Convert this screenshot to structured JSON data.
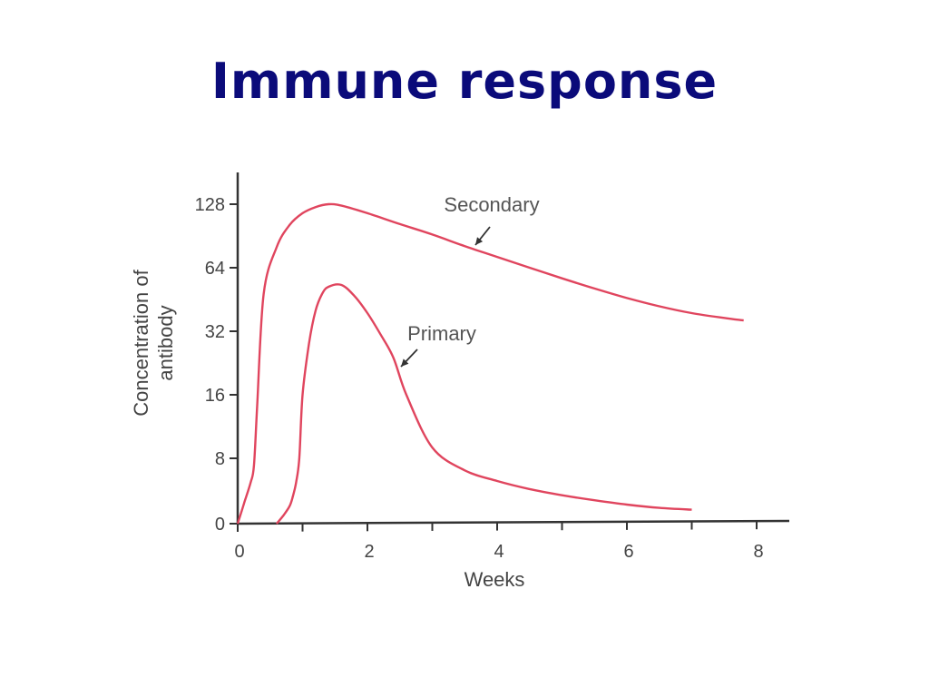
{
  "slide": {
    "title": "Immune response"
  },
  "colors": {
    "title": "#0b0b7a",
    "curve": "#e0455e",
    "axis": "#333333",
    "text": "#444444"
  },
  "chart_data": {
    "type": "line",
    "title": "Immune response",
    "xlabel": "Weeks",
    "ylabel_line1": "Concentration of",
    "ylabel_line2": "antibody",
    "x_ticks": [
      "0",
      "2",
      "4",
      "6",
      "8"
    ],
    "y_ticks": [
      "0",
      "8",
      "16",
      "32",
      "64",
      "128"
    ],
    "xlim": [
      0,
      8.5
    ],
    "y_scale": "log2 (0 at baseline)",
    "grid": false,
    "series": [
      {
        "name": "Secondary",
        "x": [
          0,
          0.1,
          0.2,
          0.25,
          0.3,
          0.4,
          0.6,
          0.8,
          1.0,
          1.2,
          1.4,
          1.6,
          2.0,
          2.5,
          3.0,
          3.5,
          4.0,
          4.5,
          5.0,
          5.5,
          6.0,
          6.5,
          7.0,
          7.5,
          7.8
        ],
        "y": [
          0,
          1,
          3,
          6,
          14,
          48,
          80,
          102,
          116,
          124,
          128,
          126,
          116,
          103,
          92,
          81,
          72,
          64,
          57,
          51,
          46,
          42,
          39,
          37,
          36
        ]
      },
      {
        "name": "Primary",
        "x": [
          0.6,
          0.7,
          0.8,
          0.85,
          0.9,
          0.95,
          1.0,
          1.1,
          1.2,
          1.3,
          1.4,
          1.6,
          1.8,
          2.0,
          2.2,
          2.4,
          2.6,
          3.0,
          3.5,
          4.0,
          4.5,
          5.0,
          5.5,
          6.0,
          6.5,
          7.0
        ],
        "y": [
          0,
          0.3,
          0.8,
          1.5,
          3,
          8,
          16,
          28,
          40,
          48,
          52,
          53,
          47,
          39,
          31,
          24,
          16,
          9,
          5,
          3.2,
          2.2,
          1.6,
          1.2,
          0.9,
          0.7,
          0.6
        ]
      }
    ]
  }
}
